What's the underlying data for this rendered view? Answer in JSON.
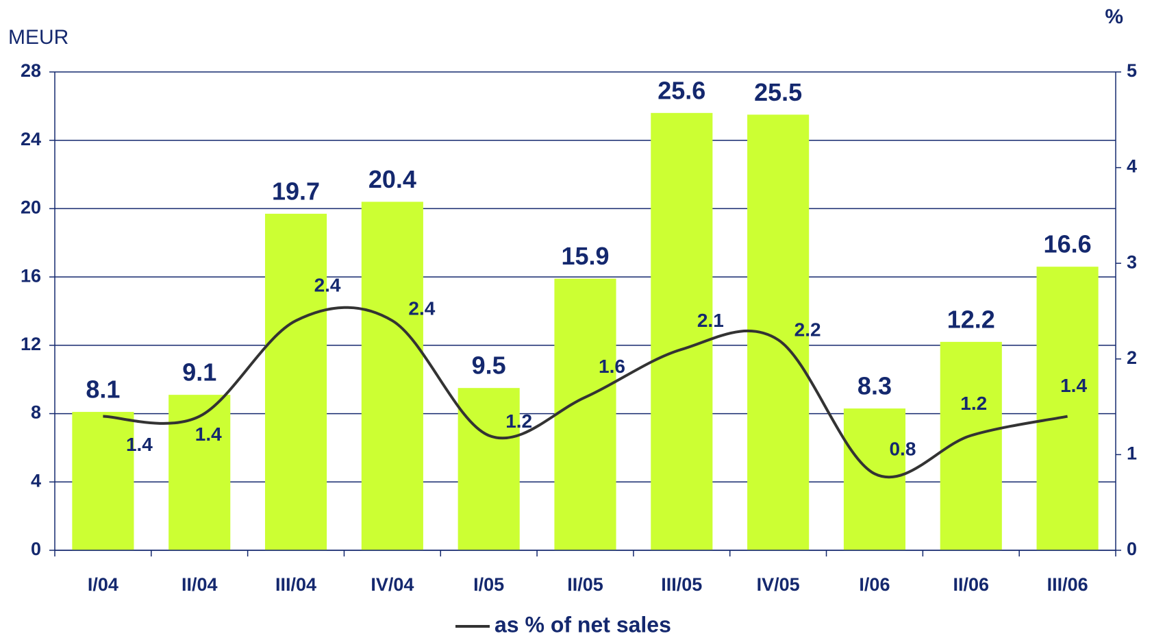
{
  "chart_data": {
    "type": "bar",
    "y_label": "MEUR",
    "y2_label": "%",
    "categories": [
      "I/04",
      "II/04",
      "III/04",
      "IV/04",
      "I/05",
      "II/05",
      "III/05",
      "IV/05",
      "I/06",
      "II/06",
      "III/06"
    ],
    "series": [
      {
        "type": "bar",
        "color": "#ccff33",
        "values": [
          8.1,
          9.1,
          19.7,
          20.4,
          9.5,
          15.9,
          25.6,
          25.5,
          8.3,
          12.2,
          16.6
        ]
      },
      {
        "type": "line",
        "name": "as % of net sales",
        "axis": "y2",
        "color": "#333333",
        "values": [
          1.4,
          1.4,
          2.4,
          2.4,
          1.2,
          1.6,
          2.1,
          2.2,
          0.8,
          1.2,
          1.4
        ]
      }
    ],
    "ylim": [
      0,
      28
    ],
    "yticks": [
      0,
      4,
      8,
      12,
      16,
      20,
      24,
      28
    ],
    "y2lim": [
      0,
      5
    ],
    "y2ticks": [
      0,
      1,
      2,
      3,
      4,
      5
    ],
    "grid": true,
    "legend": "bottom"
  }
}
